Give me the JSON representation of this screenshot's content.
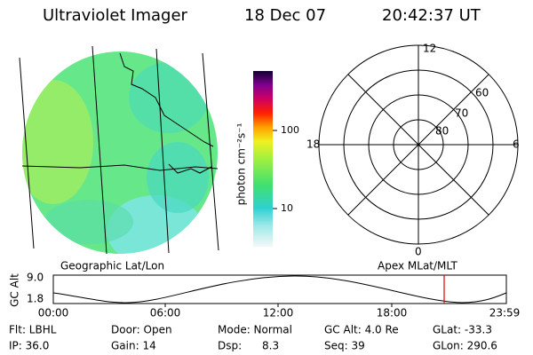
{
  "header": {
    "title": "Ultraviolet Imager",
    "date": "18 Dec 07",
    "time": "20:42:37 UT"
  },
  "colorbar": {
    "label": "photon cm⁻²s⁻¹",
    "ticks": [
      "100",
      "10"
    ]
  },
  "polar": {
    "mlt_labels": [
      "12",
      "18",
      "6",
      "0"
    ],
    "mlat_labels": [
      "60",
      "70",
      "80"
    ]
  },
  "image_labels": {
    "left": "Geographic Lat/Lon",
    "right": "Apex MLat/MLT"
  },
  "timeline": {
    "axis_label": "GC Alt",
    "y_labels": [
      "9.0",
      "1.8"
    ],
    "x_labels": [
      "00:00",
      "06:00",
      "12:00",
      "18:00",
      "23:59"
    ]
  },
  "status": {
    "rows": [
      [
        "Flt: LBHL",
        "Door: Open",
        "Mode: Normal",
        "GC Alt: 4.0 Re",
        "GLat: -33.3"
      ],
      [
        "IP: 36.0",
        "Gain: 14",
        "Dsp:      8.3",
        "Seq: 39",
        "GLon: 290.6"
      ]
    ]
  }
}
